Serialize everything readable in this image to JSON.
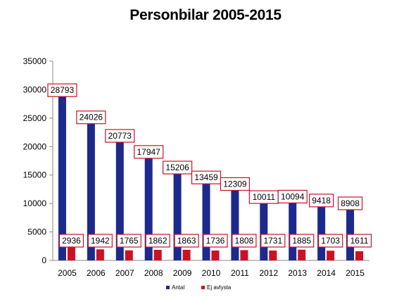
{
  "chart_data": {
    "type": "bar",
    "title": "Personbilar 2005-2015",
    "categories": [
      "2005",
      "2006",
      "2007",
      "2008",
      "2009",
      "2010",
      "2011",
      "2012",
      "2013",
      "2014",
      "2015"
    ],
    "series": [
      {
        "name": "Antal",
        "color": "#1c2a8c",
        "values": [
          28793,
          24026,
          20773,
          17947,
          15206,
          13459,
          12309,
          10011,
          10094,
          9418,
          8908
        ]
      },
      {
        "name": "Ej avlysta",
        "color": "#cc1124",
        "values": [
          2936,
          1942,
          1765,
          1862,
          1863,
          1736,
          1808,
          1731,
          1885,
          1703,
          1611
        ]
      }
    ],
    "xlabel": "",
    "ylabel": "",
    "ylim": [
      0,
      35000
    ],
    "yticks": [
      0,
      5000,
      10000,
      15000,
      20000,
      25000,
      30000,
      35000
    ],
    "grid": false,
    "legend": "bottom",
    "data_label_border_color": "#cc1124"
  }
}
